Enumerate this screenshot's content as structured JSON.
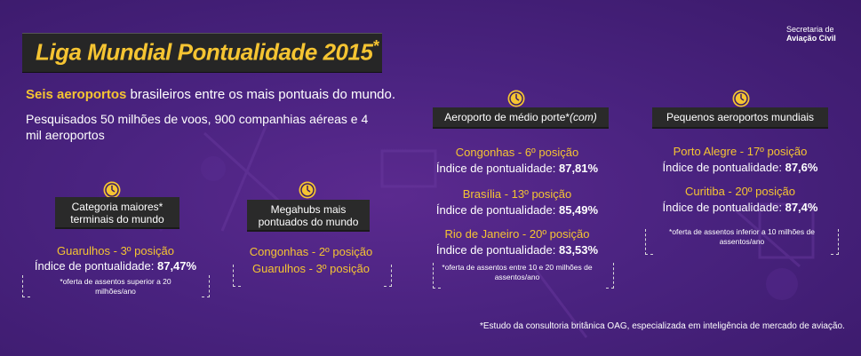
{
  "header": {
    "title": "Liga Mundial Pontualidade 2015",
    "title_star": "*",
    "org_line1": "Secretaria de",
    "org_line2": "Aviação Civil"
  },
  "intro": {
    "highlight": "Seis aeroportos",
    "line1_rest": " brasileiros entre os mais pontuais do mundo.",
    "line2": "Pesquisados 50 milhões de voos, 900 companhias aéreas e 4 mil aeroportos"
  },
  "categories": {
    "maiores": {
      "label": "Categoria maiores* terminais do mundo",
      "airport": "Guarulhos - 3º posição",
      "index_label": "Índice de pontualidade: ",
      "index_value": "87,47%",
      "note": "*oferta de assentos superior a 20 milhões/ano"
    },
    "megahubs": {
      "label": "Megahubs mais pontuados do mundo",
      "airport1": "Congonhas - 2º posição",
      "airport2": "Guarulhos - 3º posição"
    },
    "medio": {
      "label": "Aeroporto de médio porte*",
      "label_suffix": "(com)",
      "items": [
        {
          "airport": "Congonhas - 6º posição",
          "index_label": "Índice de pontualidade: ",
          "index_value": "87,81%"
        },
        {
          "airport": "Brasília - 13º posição",
          "index_label": "Índice de pontualidade: ",
          "index_value": "85,49%"
        },
        {
          "airport": "Rio de Janeiro - 20º posição",
          "index_label": "Índice de pontualidade: ",
          "index_value": "83,53%"
        }
      ],
      "note": "*oferta de assentos entre 10 e 20 milhões de assentos/ano"
    },
    "pequenos": {
      "label": "Pequenos aeroportos mundiais",
      "items": [
        {
          "airport": "Porto Alegre - 17º posição",
          "index_label": "Índice de pontualidade: ",
          "index_value": "87,6%"
        },
        {
          "airport": "Curitiba - 20º posição",
          "index_label": "Índice de pontualidade: ",
          "index_value": "87,4%"
        }
      ],
      "note": "*oferta de assentos inferior a 10 milhões de assentos/ano"
    }
  },
  "footer": "*Estudo da consultoria britânica OAG, especializada em inteligência de mercado de aviação.",
  "colors": {
    "accent": "#f5c432",
    "background": "#4a2380",
    "label_bg": "#2a2a2a"
  }
}
